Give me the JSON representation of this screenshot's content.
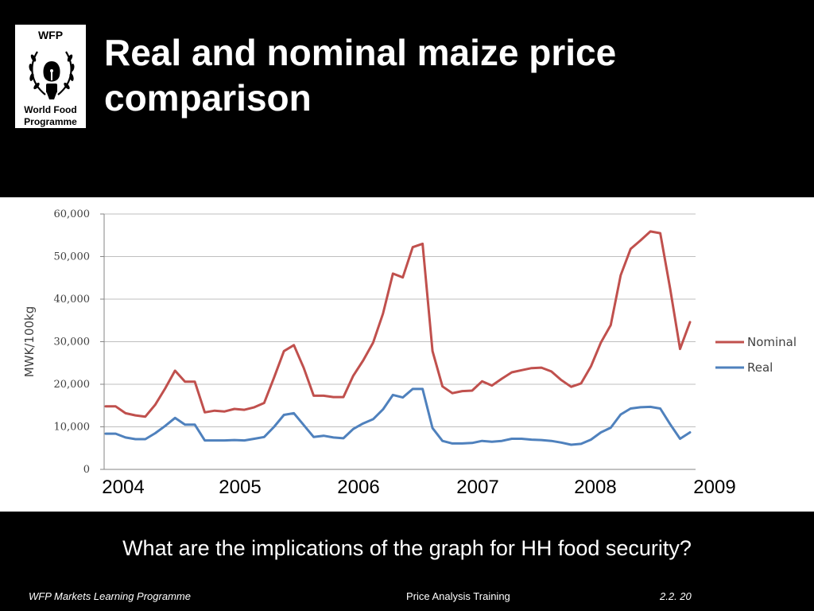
{
  "logo": {
    "abbr": "WFP",
    "name": "World Food\nProgramme"
  },
  "title": "Real and nominal maize price comparison",
  "chart_data": {
    "type": "line",
    "ylabel": "MWK/100kg",
    "ylim": [
      0,
      60000
    ],
    "yticks": [
      0,
      10000,
      20000,
      30000,
      40000,
      50000,
      60000
    ],
    "ytick_labels": [
      "0",
      "10,000",
      "20,000",
      "30,000",
      "40,000",
      "50,000",
      "60,000"
    ],
    "grid": true,
    "legend": "right",
    "year_labels": [
      "2004",
      "2005",
      "2006",
      "2007",
      "2008",
      "2009"
    ],
    "x_range": [
      0,
      59
    ],
    "series": [
      {
        "name": "Nominal",
        "color": "#c0504d",
        "values": [
          14800,
          14800,
          13200,
          12700,
          12400,
          15200,
          19000,
          23200,
          20600,
          20600,
          13400,
          13800,
          13600,
          14200,
          14000,
          14600,
          15600,
          21600,
          27800,
          29200,
          23800,
          17300,
          17300,
          17000,
          17000,
          22000,
          25600,
          29800,
          36600,
          46000,
          45100,
          52200,
          53000,
          27800,
          19500,
          17900,
          18400,
          18500,
          20700,
          19700,
          21300,
          22800,
          23300,
          23800,
          23900,
          23000,
          21000,
          19400,
          20200,
          24200,
          29800,
          33900,
          45600,
          51800,
          53800,
          55900,
          55500,
          42400,
          28300,
          34600
        ]
      },
      {
        "name": "Real",
        "color": "#4f81bd",
        "values": [
          8400,
          8400,
          7500,
          7100,
          7100,
          8500,
          10200,
          12100,
          10500,
          10500,
          6800,
          6800,
          6800,
          6900,
          6800,
          7200,
          7600,
          10000,
          12800,
          13200,
          10400,
          7600,
          7900,
          7500,
          7300,
          9500,
          10800,
          11800,
          14100,
          17500,
          16900,
          18900,
          18900,
          9700,
          6700,
          6100,
          6100,
          6200,
          6700,
          6500,
          6700,
          7200,
          7200,
          7000,
          6900,
          6700,
          6300,
          5800,
          6000,
          7000,
          8700,
          9800,
          12900,
          14300,
          14600,
          14700,
          14300,
          10600,
          7200,
          8700
        ]
      }
    ]
  },
  "question": "What are the implications of the graph for HH food security?",
  "footer": {
    "left": "WFP Markets Learning Programme",
    "center": "Price Analysis Training",
    "right": "2.2. 20"
  }
}
